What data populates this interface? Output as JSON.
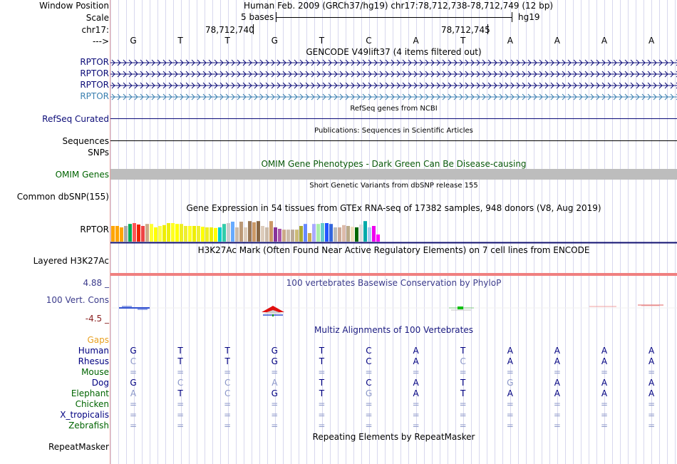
{
  "header": {
    "assembly_title": "Human Feb. 2009 (GRCh37/hg19)   chr17:78,712,738-78,712,749 (12 bp)",
    "scale_text": "5 bases",
    "scale_db": "hg19",
    "pos_left": "78,712,740",
    "pos_right": "78,712,745"
  },
  "labels": {
    "window_position": "Window Position",
    "scale": "Scale",
    "chrom": "chr17:",
    "arrow": "--->",
    "rptor1": "RPTOR",
    "rptor2": "RPTOR",
    "rptor3": "RPTOR",
    "rptor4": "RPTOR",
    "refseq": "RefSeq Curated",
    "sequences": "Sequences",
    "snps": "SNPs",
    "omim": "OMIM Genes",
    "dbsnp": "Common dbSNP(155)",
    "gtex": "RPTOR",
    "h3k27ac": "Layered H3K27Ac",
    "phylop_max": "4.88 _",
    "phylop_name": "100 Vert. Cons",
    "phylop_min": "-4.5 _",
    "gaps": "Gaps",
    "repeatmasker": "RepeatMasker"
  },
  "tracks": {
    "gencode": "GENCODE V49lift37 (4 items filtered out)",
    "refseq": "RefSeq genes from NCBI",
    "publications": "Publications: Sequences in Scientific Articles",
    "omim": "OMIM Gene Phenotypes - Dark Green Can Be Disease-causing",
    "dbsnp": "Short Genetic Variants from dbSNP release 155",
    "gtex": "Gene Expression in 54 tissues from GTEx RNA-seq of 17382 samples, 948 donors (V8, Aug 2019)",
    "h3k27ac": "H3K27Ac Mark (Often Found Near Active Regulatory Elements) on 7 cell lines from ENCODE",
    "phylop": "100 vertebrates Basewise Conservation by PhyloP",
    "multiz": "Multiz Alignments of 100 Vertebrates",
    "repeatmasker": "Repeating Elements by RepeatMasker"
  },
  "ruler_bases": [
    "G",
    "T",
    "T",
    "G",
    "T",
    "C",
    "A",
    "T",
    "A",
    "A",
    "A",
    "A"
  ],
  "species": [
    {
      "name": "Human",
      "color": "#000080",
      "bases": [
        "G",
        "T",
        "T",
        "G",
        "T",
        "C",
        "A",
        "T",
        "A",
        "A",
        "A",
        "A"
      ],
      "faded": [
        0,
        0,
        0,
        0,
        0,
        0,
        0,
        0,
        0,
        0,
        0,
        0
      ]
    },
    {
      "name": "Rhesus",
      "color": "#000080",
      "bases": [
        "C",
        "T",
        "T",
        "G",
        "T",
        "C",
        "A",
        "C",
        "A",
        "A",
        "A",
        "A"
      ],
      "faded": [
        1,
        0,
        0,
        0,
        0,
        0,
        0,
        1,
        0,
        0,
        0,
        0
      ]
    },
    {
      "name": "Mouse",
      "color": "#006400",
      "bases": [
        "=",
        "=",
        "=",
        "=",
        "=",
        "=",
        "=",
        "=",
        "=",
        "=",
        "=",
        "="
      ],
      "faded": [
        1,
        1,
        1,
        1,
        1,
        1,
        1,
        1,
        1,
        1,
        1,
        1
      ]
    },
    {
      "name": "Dog",
      "color": "#000080",
      "bases": [
        "G",
        "C",
        "C",
        "A",
        "T",
        "C",
        "A",
        "T",
        "G",
        "A",
        "A",
        "A"
      ],
      "faded": [
        0,
        1,
        1,
        1,
        0,
        0,
        0,
        0,
        1,
        0,
        0,
        0
      ]
    },
    {
      "name": "Elephant",
      "color": "#006400",
      "bases": [
        "A",
        "T",
        "C",
        "G",
        "T",
        "G",
        "A",
        "T",
        "A",
        "A",
        "A",
        "A"
      ],
      "faded": [
        1,
        0,
        1,
        0,
        0,
        1,
        0,
        0,
        0,
        0,
        0,
        0
      ]
    },
    {
      "name": "Chicken",
      "color": "#006400",
      "bases": [
        "=",
        "=",
        "=",
        "=",
        "=",
        "=",
        "=",
        "=",
        "=",
        "=",
        "=",
        "="
      ],
      "faded": [
        1,
        1,
        1,
        1,
        1,
        1,
        1,
        1,
        1,
        1,
        1,
        1
      ]
    },
    {
      "name": "X_tropicalis",
      "color": "#000080",
      "bases": [
        "=",
        "=",
        "=",
        "=",
        "=",
        "=",
        "=",
        "=",
        "=",
        "=",
        "=",
        "="
      ],
      "faded": [
        1,
        1,
        1,
        1,
        1,
        1,
        1,
        1,
        1,
        1,
        1,
        1
      ]
    },
    {
      "name": "Zebrafish",
      "color": "#006400",
      "bases": [
        "=",
        "=",
        "=",
        "=",
        "=",
        "=",
        "=",
        "=",
        "=",
        "=",
        "=",
        "="
      ],
      "faded": [
        1,
        1,
        1,
        1,
        1,
        1,
        1,
        1,
        1,
        1,
        1,
        1
      ]
    }
  ],
  "gtex_values": [
    0.55,
    0.55,
    0.5,
    0.55,
    0.62,
    0.65,
    0.6,
    0.55,
    0.62,
    0.62,
    0.5,
    0.55,
    0.58,
    0.65,
    0.65,
    0.62,
    0.62,
    0.55,
    0.55,
    0.55,
    0.55,
    0.52,
    0.5,
    0.5,
    0.48,
    0.5,
    0.62,
    0.65,
    0.7,
    0.5,
    0.7,
    0.5,
    0.72,
    0.68,
    0.72,
    0.55,
    0.5,
    0.72,
    0.5,
    0.45,
    0.42,
    0.42,
    0.42,
    0.42,
    0.55,
    0.62,
    0.3,
    0.62,
    0.62,
    0.65,
    0.65,
    0.62,
    0.5,
    0.5,
    0.58,
    0.55,
    0.52,
    0.5,
    0.6,
    0.72,
    0.5,
    0.55,
    0.25
  ],
  "gtex_colors": [
    "#ffa500",
    "#ffa500",
    "#ffa500",
    "#aaaaaa",
    "#00aa55",
    "#ff5555",
    "#ee2200",
    "#ee4444",
    "#ccaa88",
    "#ffff33",
    "#ffff00",
    "#ffff44",
    "#eeee00",
    "#eeee11",
    "#ffff22",
    "#ffff00",
    "#eeee22",
    "#eeee33",
    "#ffff22",
    "#eeee00",
    "#eeee33",
    "#ffff00",
    "#eeee22",
    "#eeee00",
    "#ffff00",
    "#00cccc",
    "#33ccaa",
    "#cccccc",
    "#66aaff",
    "#ccbbaa",
    "#bb9977",
    "#ddccbb",
    "#997755",
    "#cc9966",
    "#886644",
    "#ddccbb",
    "#ccbbaa",
    "#cc9966",
    "#883399",
    "#aa55aa",
    "#ccaa88",
    "#ccbbaa",
    "#bbaa99",
    "#ccbb77",
    "#aaaa33",
    "#6688ff",
    "#ccaa55",
    "#aaaaff",
    "#aaeeaa",
    "#66cccc",
    "#2255ff",
    "#3366dd",
    "#bbbbbb",
    "#ccaa99",
    "#ddbbaa",
    "#bbaa88",
    "#eeddbb",
    "#006600",
    "#dddddd",
    "#00aaaa",
    "#aaccee",
    "#ee00ee",
    "#ff00ff"
  ]
}
